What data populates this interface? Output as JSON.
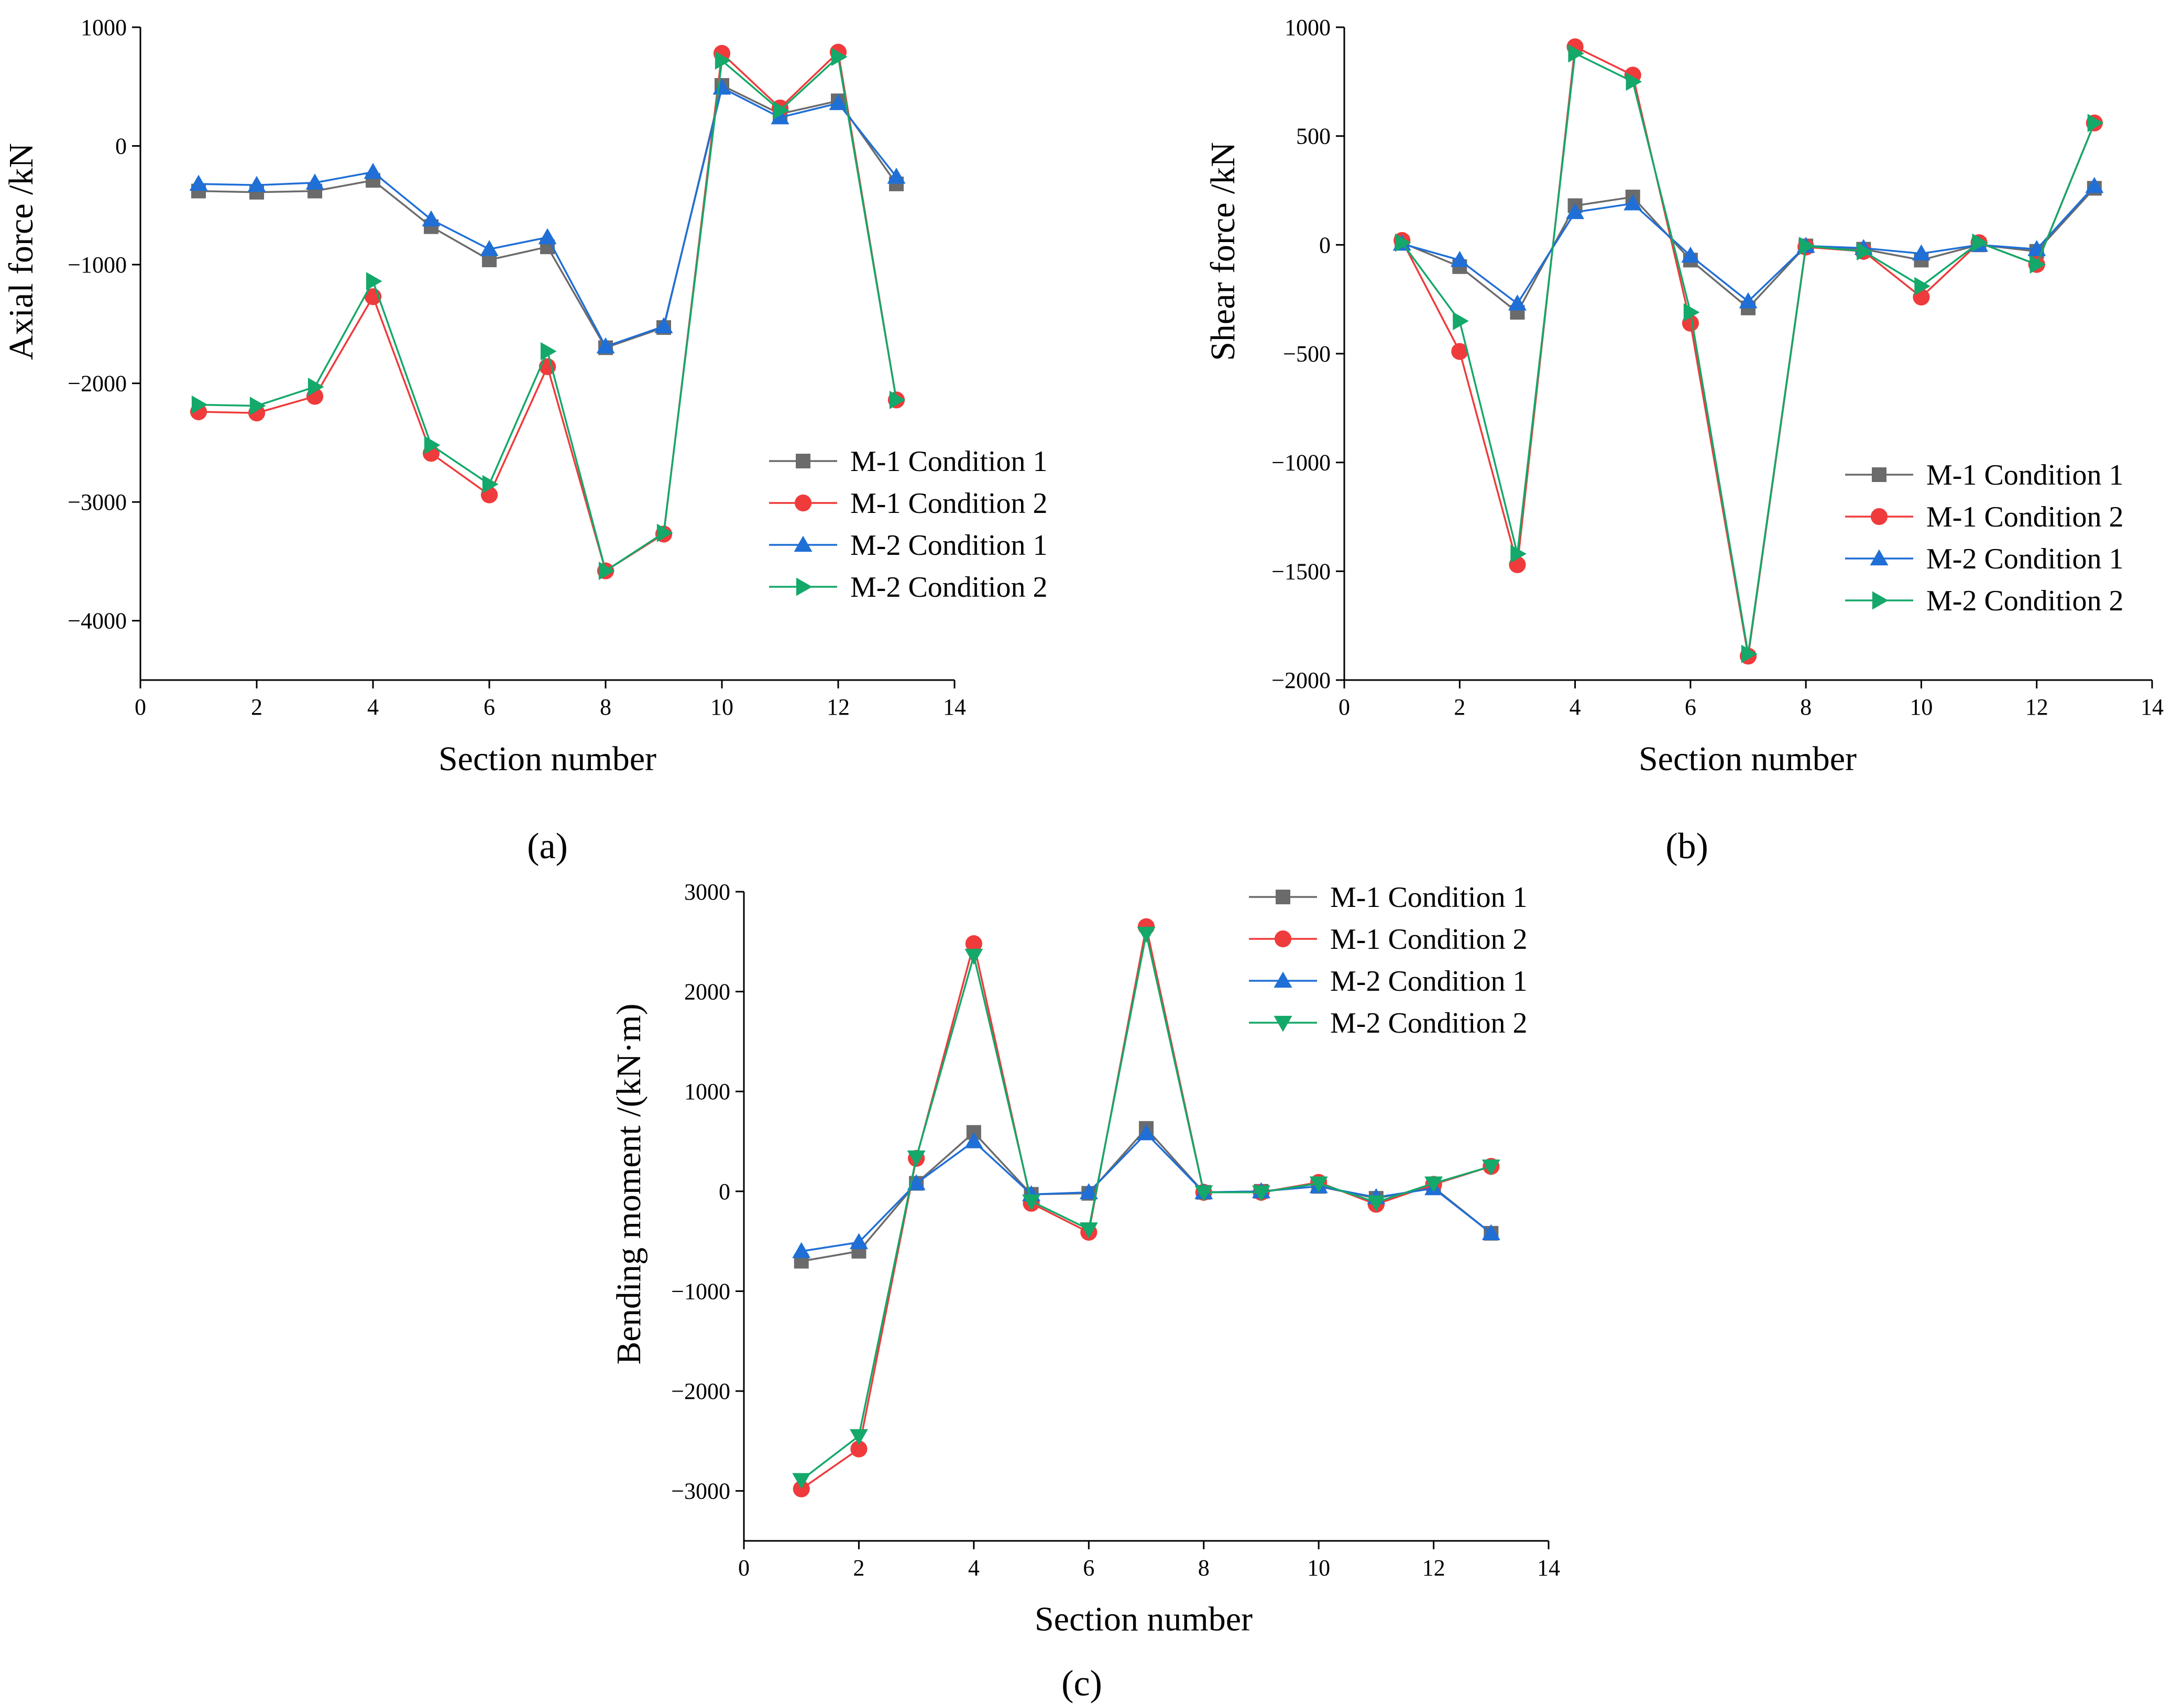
{
  "chart_data": [
    {
      "type": "line",
      "panel_label": "(a)",
      "xlabel": "Section number",
      "ylabel": "Axial force /kN",
      "xlim": [
        0,
        14
      ],
      "ylim": [
        -4500,
        1000
      ],
      "xticks": [
        0,
        2,
        4,
        6,
        8,
        10,
        12,
        14
      ],
      "yticks": [
        -4000,
        -3000,
        -2000,
        -1000,
        0,
        1000
      ],
      "x": [
        1,
        2,
        3,
        4,
        5,
        6,
        7,
        8,
        9,
        10,
        11,
        12,
        13
      ],
      "legend_position": "right",
      "series": [
        {
          "name": "M-1 Condition 1",
          "color": "#6b6b6b",
          "marker": "square",
          "values": [
            -380,
            -390,
            -380,
            -290,
            -680,
            -960,
            -850,
            -1700,
            -1530,
            510,
            270,
            380,
            -320
          ]
        },
        {
          "name": "M-1 Condition 2",
          "color": "#ef3b3b",
          "marker": "circle",
          "values": [
            -2240,
            -2250,
            -2110,
            -1270,
            -2590,
            -2940,
            -1860,
            -3580,
            -3270,
            780,
            320,
            790,
            -2140
          ]
        },
        {
          "name": "M-2 Condition 1",
          "color": "#1f6fd6",
          "marker": "triangle-up",
          "values": [
            -320,
            -330,
            -310,
            -220,
            -620,
            -870,
            -770,
            -1690,
            -1520,
            490,
            240,
            360,
            -260
          ]
        },
        {
          "name": "M-2 Condition 2",
          "color": "#14a86a",
          "marker": "triangle-right",
          "values": [
            -2180,
            -2190,
            -2030,
            -1140,
            -2520,
            -2850,
            -1730,
            -3580,
            -3260,
            720,
            300,
            750,
            -2140
          ]
        }
      ]
    },
    {
      "type": "line",
      "panel_label": "(b)",
      "xlabel": "Section number",
      "ylabel": "Shear force /kN",
      "xlim": [
        0,
        14
      ],
      "ylim": [
        -2000,
        1000
      ],
      "xticks": [
        0,
        2,
        4,
        6,
        8,
        10,
        12,
        14
      ],
      "yticks": [
        -2000,
        -1500,
        -1000,
        -500,
        0,
        500,
        1000
      ],
      "x": [
        1,
        2,
        3,
        4,
        5,
        6,
        7,
        8,
        9,
        10,
        11,
        12,
        13
      ],
      "legend_position": "right",
      "series": [
        {
          "name": "M-1 Condition 1",
          "color": "#6b6b6b",
          "marker": "square",
          "values": [
            10,
            -100,
            -310,
            180,
            220,
            -70,
            -290,
            -5,
            -20,
            -70,
            0,
            -30,
            260
          ]
        },
        {
          "name": "M-1 Condition 2",
          "color": "#ef3b3b",
          "marker": "circle",
          "values": [
            20,
            -490,
            -1470,
            910,
            780,
            -360,
            -1890,
            -10,
            -30,
            -240,
            10,
            -90,
            560
          ]
        },
        {
          "name": "M-2 Condition 1",
          "color": "#1f6fd6",
          "marker": "triangle-up",
          "values": [
            5,
            -70,
            -270,
            150,
            190,
            -50,
            -260,
            -5,
            -15,
            -40,
            0,
            -20,
            270
          ]
        },
        {
          "name": "M-2 Condition 2",
          "color": "#14a86a",
          "marker": "triangle-right",
          "values": [
            10,
            -350,
            -1420,
            880,
            750,
            -310,
            -1880,
            -5,
            -30,
            -190,
            10,
            -90,
            560
          ]
        }
      ]
    },
    {
      "type": "line",
      "panel_label": "(c)",
      "xlabel": "Section number",
      "ylabel": "Bending moment /(kN·m)",
      "xlim": [
        0,
        14
      ],
      "ylim": [
        -3500,
        3000
      ],
      "xticks": [
        0,
        2,
        4,
        6,
        8,
        10,
        12,
        14
      ],
      "yticks": [
        -3000,
        -2000,
        -1000,
        0,
        1000,
        2000,
        3000
      ],
      "x": [
        1,
        2,
        3,
        4,
        5,
        6,
        7,
        8,
        9,
        10,
        11,
        12,
        13
      ],
      "legend_position": "top-right",
      "series": [
        {
          "name": "M-1 Condition 1",
          "color": "#6b6b6b",
          "marker": "square",
          "values": [
            -700,
            -600,
            80,
            590,
            -30,
            -20,
            630,
            -10,
            0,
            50,
            -70,
            40,
            -420
          ]
        },
        {
          "name": "M-1 Condition 2",
          "color": "#ef3b3b",
          "marker": "circle",
          "values": [
            -2980,
            -2580,
            330,
            2480,
            -120,
            -410,
            2650,
            -10,
            -10,
            90,
            -130,
            70,
            250
          ]
        },
        {
          "name": "M-2 Condition 1",
          "color": "#1f6fd6",
          "marker": "triangle-up",
          "values": [
            -600,
            -510,
            80,
            500,
            -30,
            -10,
            580,
            -10,
            0,
            50,
            -60,
            30,
            -420
          ]
        },
        {
          "name": "M-2 Condition 2",
          "color": "#14a86a",
          "marker": "triangle-down",
          "values": [
            -2890,
            -2450,
            340,
            2360,
            -100,
            -380,
            2580,
            -10,
            -10,
            80,
            -110,
            80,
            250
          ]
        }
      ]
    }
  ]
}
